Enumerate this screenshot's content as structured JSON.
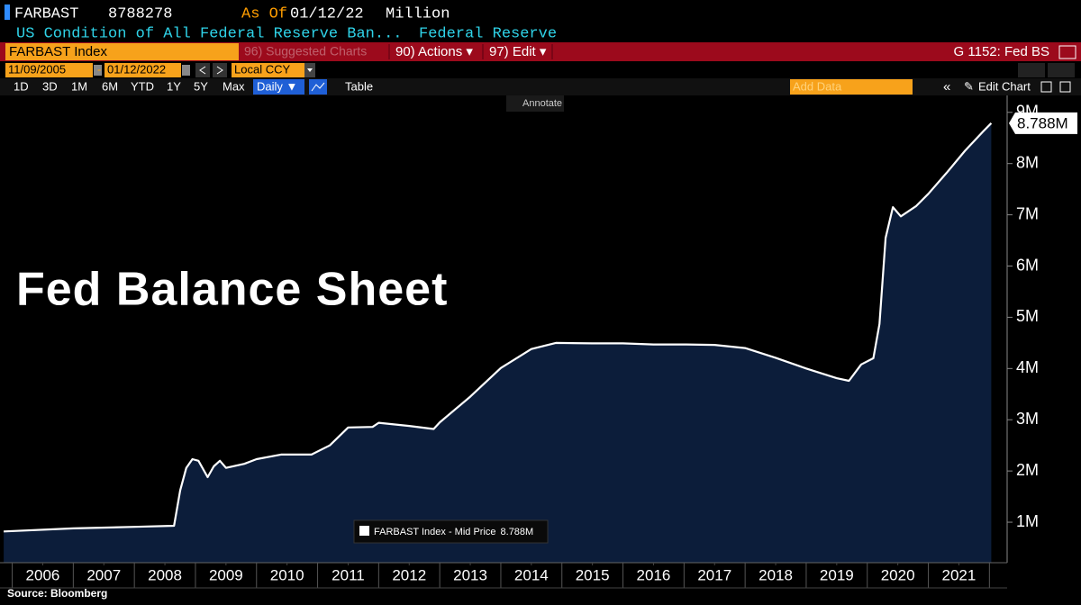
{
  "header": {
    "ticker": "FARBAST",
    "value": "8788278",
    "as_of_label": "As Of",
    "as_of": "01/12/22",
    "units": "Million",
    "description": "US Condition of All Federal Reserve Ban...",
    "source_name": "Federal Reserve"
  },
  "toolbar": {
    "security": "FARBAST Index",
    "suggested": "96) Suggested Charts",
    "actions": "90) Actions ▾",
    "edit": "97) Edit ▾",
    "chart_id": "G 1152: Fed BS",
    "start_date": "11/09/2005",
    "end_date": "01/12/2022",
    "currency": "Local CCY",
    "periods": [
      "1D",
      "3D",
      "1M",
      "6M",
      "YTD",
      "1Y",
      "5Y",
      "Max"
    ],
    "frequency": "Daily ▼",
    "table": "Table",
    "add_data": "Add Data",
    "edit_chart": "Edit Chart",
    "annotate": "Annotate"
  },
  "footer": {
    "source": "Source: Bloomberg"
  },
  "chart_data": {
    "type": "area",
    "annotation": "Fed Balance Sheet",
    "x": [
      2005.86,
      2007.0,
      2008.0,
      2008.65,
      2008.75,
      2008.85,
      2008.95,
      2009.05,
      2009.2,
      2009.3,
      2009.4,
      2009.5,
      2009.8,
      2010.0,
      2010.4,
      2010.9,
      2011.2,
      2011.5,
      2011.9,
      2012.0,
      2012.5,
      2012.9,
      2013.0,
      2013.5,
      2014.0,
      2014.5,
      2014.9,
      2015.5,
      2016.0,
      2016.5,
      2017.0,
      2017.5,
      2018.0,
      2018.5,
      2019.0,
      2019.5,
      2019.7,
      2019.9,
      2020.1,
      2020.2,
      2020.3,
      2020.42,
      2020.55,
      2020.8,
      2021.0,
      2021.3,
      2021.6,
      2021.9,
      2022.03
    ],
    "series": [
      {
        "name": "FARBAST Index - Mid Price",
        "color": "#ffffff",
        "fill": "#0c1d3a",
        "values": [
          820000,
          880000,
          910000,
          930000,
          1620000,
          2060000,
          2230000,
          2200000,
          1880000,
          2090000,
          2200000,
          2060000,
          2140000,
          2230000,
          2320000,
          2320000,
          2500000,
          2850000,
          2860000,
          2940000,
          2880000,
          2820000,
          2950000,
          3450000,
          4010000,
          4380000,
          4500000,
          4490000,
          4490000,
          4470000,
          4470000,
          4460000,
          4400000,
          4210000,
          4000000,
          3810000,
          3760000,
          4080000,
          4200000,
          4870000,
          6550000,
          7150000,
          6970000,
          7170000,
          7410000,
          7820000,
          8250000,
          8630000,
          8788278
        ],
        "value_labels": [
          null,
          null,
          null,
          null,
          null,
          null,
          null,
          null,
          null,
          null,
          null,
          null,
          null,
          null,
          null,
          null,
          null,
          null,
          null,
          null,
          null,
          null,
          null,
          null,
          null,
          null,
          null,
          null,
          null,
          null,
          null,
          null,
          null,
          null,
          null,
          null,
          null,
          null,
          null,
          null,
          null,
          null,
          null,
          null,
          null,
          null,
          null,
          null,
          "8.788M"
        ]
      }
    ],
    "xlim": [
      2005.8,
      2022.29
    ],
    "xticks": [
      {
        "value": 2006.5,
        "label": "2006"
      },
      {
        "value": 2007.5,
        "label": "2007"
      },
      {
        "value": 2008.5,
        "label": "2008"
      },
      {
        "value": 2009.5,
        "label": "2009"
      },
      {
        "value": 2010.5,
        "label": "2010"
      },
      {
        "value": 2011.5,
        "label": "2011"
      },
      {
        "value": 2012.5,
        "label": "2012"
      },
      {
        "value": 2013.5,
        "label": "2013"
      },
      {
        "value": 2014.5,
        "label": "2014"
      },
      {
        "value": 2015.5,
        "label": "2015"
      },
      {
        "value": 2016.5,
        "label": "2016"
      },
      {
        "value": 2017.5,
        "label": "2017"
      },
      {
        "value": 2018.5,
        "label": "2018"
      },
      {
        "value": 2019.5,
        "label": "2019"
      },
      {
        "value": 2020.5,
        "label": "2020"
      },
      {
        "value": 2021.5,
        "label": "2021"
      }
    ],
    "ylim": [
      210000,
      9330000
    ],
    "yticks": [
      {
        "value": 1000000,
        "label": "1M"
      },
      {
        "value": 2000000,
        "label": "2M"
      },
      {
        "value": 3000000,
        "label": "3M"
      },
      {
        "value": 4000000,
        "label": "4M"
      },
      {
        "value": 5000000,
        "label": "5M"
      },
      {
        "value": 6000000,
        "label": "6M"
      },
      {
        "value": 7000000,
        "label": "7M"
      },
      {
        "value": 8000000,
        "label": "8M"
      },
      {
        "value": 9000000,
        "label": "9M"
      }
    ],
    "y_axis_side": "right",
    "grid": false
  }
}
